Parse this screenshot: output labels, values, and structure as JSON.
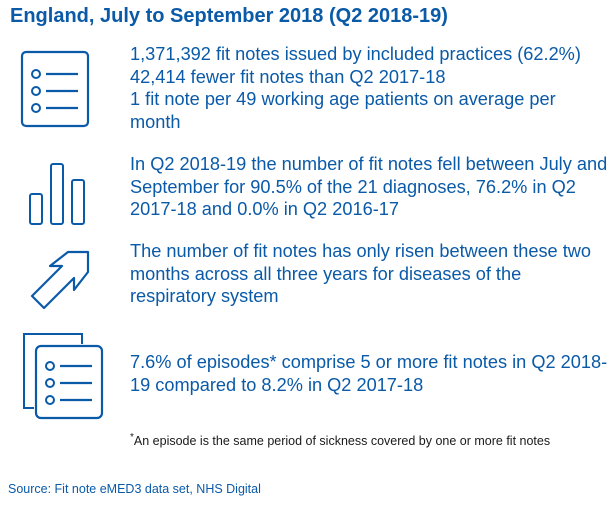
{
  "title": "England, July to September 2018 (Q2 2018-19)",
  "sections": [
    {
      "icon": "list-icon",
      "lines": [
        "1,371,392 fit notes issued by included practices (62.2%)",
        "42,414 fewer fit notes than Q2 2017-18",
        "1 fit note per 49 working age patients on average per month"
      ]
    },
    {
      "icon": "bar-chart-icon",
      "text": "In Q2 2018-19 the number of fit notes fell between July and September for 90.5% of the 21 diagnoses, 76.2% in Q2 2017-18 and 0.0% in Q2 2016-17"
    },
    {
      "icon": "arrow-up-right-icon",
      "text": "The number of fit notes has only risen between these two months across all three years for diseases of the respiratory system"
    },
    {
      "icon": "document-stack-icon",
      "text": "7.6% of episodes* comprise 5 or more fit notes in Q2 2018-19 compared to 8.2% in Q2 2017-18"
    }
  ],
  "footnote": {
    "marker": "*",
    "text": "An episode is the same period of sickness covered by one or more fit notes"
  },
  "source": "Source: Fit note eMED3 data set, NHS Digital"
}
